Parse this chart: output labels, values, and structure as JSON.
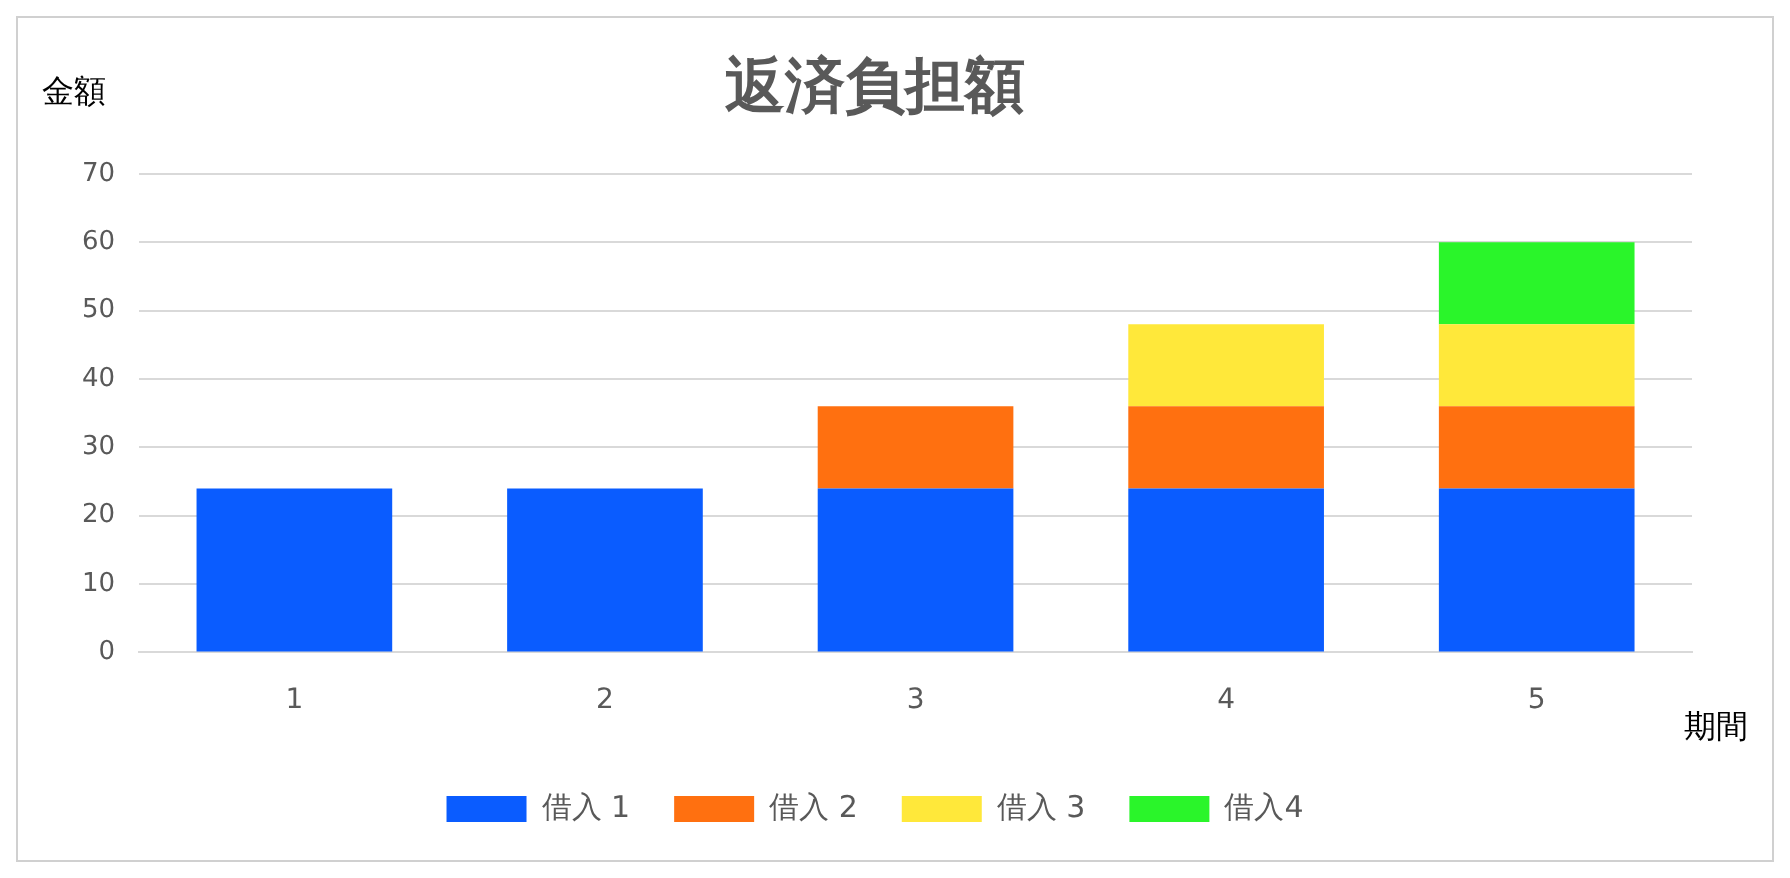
{
  "chart_data": {
    "type": "bar",
    "title": "返済負担額",
    "xlabel": "期間",
    "ylabel": "金額",
    "categories": [
      "1",
      "2",
      "3",
      "4",
      "5"
    ],
    "stacked": true,
    "ylim": [
      0,
      70
    ],
    "yticks": [
      0,
      10,
      20,
      30,
      40,
      50,
      60,
      70
    ],
    "grid": "y",
    "legend": "bottom",
    "series": [
      {
        "name": "借入 1",
        "color": "#0a5cff",
        "values": [
          24,
          24,
          24,
          24,
          24
        ]
      },
      {
        "name": "借入 2",
        "color": "#ff7010",
        "values": [
          null,
          null,
          12,
          12,
          12
        ]
      },
      {
        "name": "借入 3",
        "color": "#ffe83a",
        "values": [
          null,
          null,
          null,
          12,
          12
        ]
      },
      {
        "name": "借入4",
        "color": "#2af52a",
        "values": [
          null,
          null,
          null,
          null,
          12
        ]
      }
    ]
  }
}
